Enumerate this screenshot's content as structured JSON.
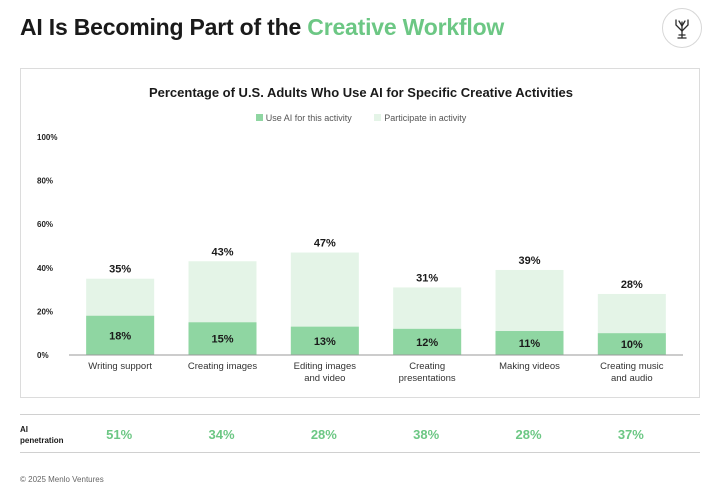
{
  "header": {
    "title_prefix": "AI Is Becoming Part of the",
    "title_accent": "Creative Workflow",
    "logo_icon": "menlo-ventures-logo-icon"
  },
  "colors": {
    "accent": "#6cc784",
    "ai_fill": "#8fd6a2",
    "participate_fill": "#e4f4e7"
  },
  "chart_data": {
    "type": "bar",
    "title": "Percentage of U.S. Adults Who Use AI for Specific Creative Activities",
    "categories": [
      "Writing support",
      "Creating images",
      "Editing images and video",
      "Creating presentations",
      "Making videos",
      "Creating music and audio"
    ],
    "category_lines": [
      [
        "Writing support"
      ],
      [
        "Creating images"
      ],
      [
        "Editing images",
        "and video"
      ],
      [
        "Creating",
        "presentations"
      ],
      [
        "Making videos"
      ],
      [
        "Creating music",
        "and audio"
      ]
    ],
    "series": [
      {
        "name": "Use AI for this activity",
        "values": [
          18,
          15,
          13,
          12,
          11,
          10
        ]
      },
      {
        "name": "Participate in activity",
        "values": [
          35,
          43,
          47,
          31,
          39,
          28
        ]
      }
    ],
    "overlay": "series[0] drawn inside series[1]",
    "data_labels": true,
    "ylim": [
      0,
      100
    ],
    "yticks": [
      0,
      20,
      40,
      60,
      80,
      100
    ],
    "y_tick_format": "percent",
    "grid": false,
    "legend_placement": "top-center"
  },
  "penetration": {
    "label": "AI penetration",
    "values": [
      "51%",
      "34%",
      "28%",
      "38%",
      "28%",
      "37%"
    ]
  },
  "footer": {
    "copyright": "© 2025 Menlo Ventures"
  }
}
